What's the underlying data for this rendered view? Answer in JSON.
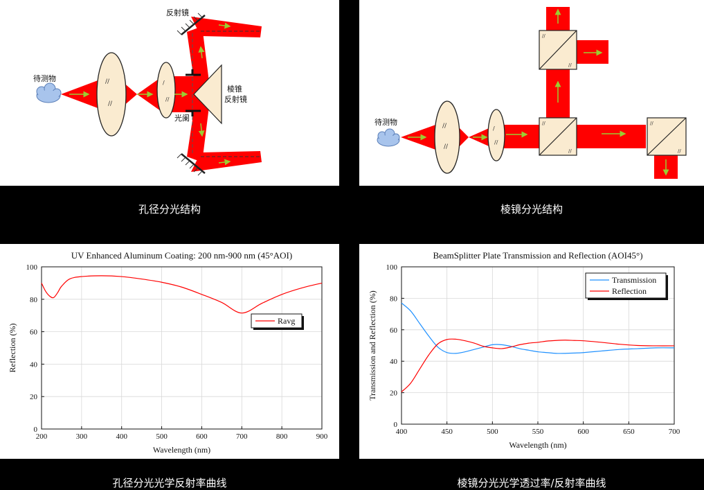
{
  "captions": {
    "top_left": "孔径分光结构",
    "top_right": "棱镜分光结构",
    "bottom_left": "孔径分光光学反射率曲线",
    "bottom_right": "棱镜分光光学透过率/反射率曲线"
  },
  "diagram_left": {
    "object_label": "待测物",
    "mirror_label": "反射镜",
    "prism_label_1": "棱锥",
    "prism_label_2": "反射镜",
    "stop_label": "光阑"
  },
  "diagram_right": {
    "object_label": "待测物"
  },
  "colors": {
    "beam": "#ff0000",
    "arrow": "#9acd32",
    "lens": "#faebd0",
    "cloud": "#a8c4ec",
    "cube": "#faebd0"
  },
  "chart_data": [
    {
      "type": "line",
      "title": "UV Enhanced Aluminum Coating: 200 nm-900 nm (45°AOI)",
      "xlabel": "Wavelength (nm)",
      "ylabel": "Reflection (%)",
      "xlim": [
        200,
        900
      ],
      "ylim": [
        0,
        100
      ],
      "xticks": [
        200,
        300,
        400,
        500,
        600,
        700,
        800,
        900
      ],
      "yticks": [
        0,
        20,
        40,
        60,
        80,
        100
      ],
      "grid": true,
      "legend_position": "top-right",
      "series": [
        {
          "name": "Ravg",
          "color": "#ff0000",
          "x": [
            200,
            210,
            220,
            230,
            240,
            250,
            270,
            300,
            350,
            400,
            450,
            500,
            550,
            600,
            650,
            700,
            750,
            800,
            850,
            900
          ],
          "y": [
            90,
            85,
            82,
            81,
            84,
            88,
            92.5,
            94,
            94.5,
            94,
            92.5,
            90.5,
            87.5,
            83,
            78,
            71.5,
            77.5,
            83,
            87,
            90
          ]
        }
      ]
    },
    {
      "type": "line",
      "title": "BeamSplitter Plate Transmission and Reflection (AOI45°)",
      "xlabel": "Wavelength (nm)",
      "ylabel": "Transmission and Reflection (%)",
      "xlim": [
        400,
        700
      ],
      "ylim": [
        0,
        100
      ],
      "xticks": [
        400,
        450,
        500,
        550,
        600,
        650,
        700
      ],
      "yticks": [
        0,
        20,
        40,
        60,
        80,
        100
      ],
      "grid": true,
      "legend_position": "top-right",
      "series": [
        {
          "name": "Transmission",
          "color": "#1e90ff",
          "x": [
            400,
            410,
            420,
            430,
            440,
            450,
            460,
            470,
            480,
            490,
            500,
            510,
            520,
            530,
            540,
            550,
            560,
            570,
            580,
            590,
            600,
            620,
            640,
            660,
            680,
            700
          ],
          "y": [
            77,
            72,
            64,
            56,
            49,
            45.5,
            45,
            46,
            47.5,
            49,
            50.5,
            50.5,
            49.5,
            48,
            47,
            46,
            45.5,
            45,
            45,
            45.2,
            45.5,
            46.5,
            47.5,
            48,
            48.5,
            48.5
          ]
        },
        {
          "name": "Reflection",
          "color": "#ff0000",
          "x": [
            400,
            410,
            420,
            430,
            440,
            450,
            460,
            470,
            480,
            490,
            500,
            510,
            520,
            530,
            540,
            550,
            560,
            570,
            580,
            590,
            600,
            620,
            640,
            660,
            680,
            700
          ],
          "y": [
            20.5,
            26,
            35,
            44,
            51,
            53.8,
            54,
            53,
            51.5,
            49.5,
            48.5,
            48,
            49,
            50.5,
            51.5,
            52,
            52.8,
            53.2,
            53.4,
            53.2,
            53,
            52,
            50.8,
            50,
            49.8,
            49.8
          ]
        }
      ]
    }
  ]
}
